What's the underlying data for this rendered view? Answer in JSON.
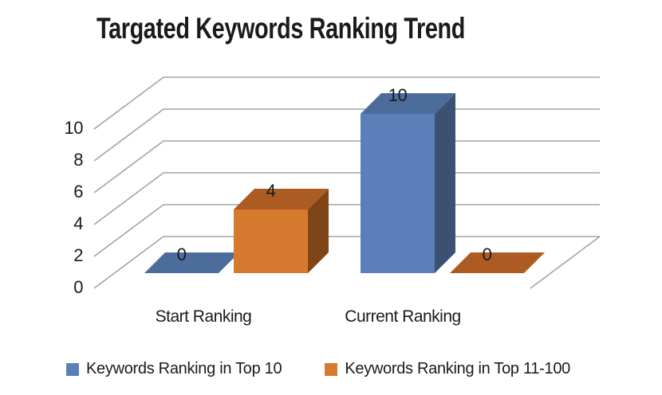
{
  "title": "Targated Keywords Ranking Trend",
  "colors": {
    "text": "#1a1a1a",
    "gridline": "#a3a3a3",
    "background": "#ffffff"
  },
  "chart_data": {
    "type": "bar",
    "projection": "3d",
    "title": "Targated Keywords Ranking Trend",
    "categories": [
      "Start Ranking",
      "Current Ranking"
    ],
    "series": [
      {
        "name": "Keywords Ranking in Top 10",
        "values": [
          0,
          10
        ],
        "data_labels": [
          "0",
          "10"
        ],
        "color_front": "#5b80b9",
        "color_top": "#4c6c9c",
        "color_side": "#3a5174"
      },
      {
        "name": "Keywords Ranking in Top 11-100",
        "values": [
          4,
          0
        ],
        "data_labels": [
          "4",
          "0"
        ],
        "color_front": "#d67a30",
        "color_top": "#ac5c22",
        "color_side": "#7f4517"
      }
    ],
    "value_axis": {
      "min": 0,
      "max": 10,
      "step": 2,
      "tick_labels": [
        "0",
        "2",
        "4",
        "6",
        "8",
        "10"
      ]
    },
    "gridlines": true,
    "data_labels_shown": true,
    "legend_position": "bottom"
  }
}
